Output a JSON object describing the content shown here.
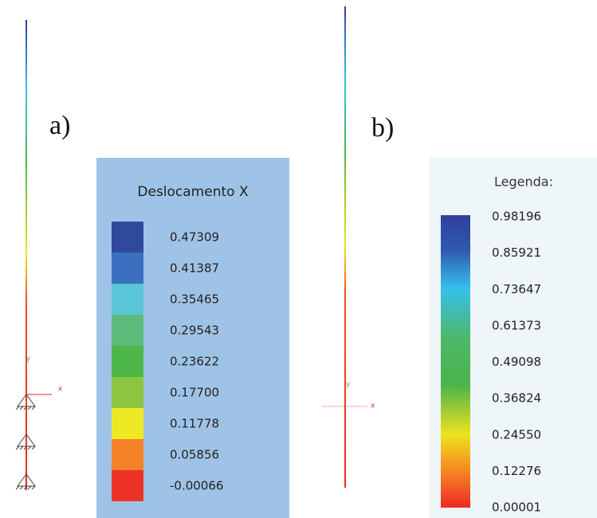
{
  "panel_a": {
    "label": "a)",
    "axis_x": "x",
    "axis_y": "y",
    "legend": {
      "title": "Deslocamento X",
      "values": [
        "0.47309",
        "0.41387",
        "0.35465",
        "0.29543",
        "0.23622",
        "0.17700",
        "0.11778",
        "0.05856",
        "-0.00066"
      ],
      "colors": [
        "#2f4a9c",
        "#3b70c0",
        "#5ac6d8",
        "#5cbb7a",
        "#4db649",
        "#8cc640",
        "#eee925",
        "#f38228",
        "#ec3325"
      ]
    }
  },
  "panel_b": {
    "label": "b)",
    "axis_x": "x",
    "axis_y": "y",
    "legend": {
      "title": "Legenda:",
      "values": [
        "0.98196",
        "0.85921",
        "0.73647",
        "0.61373",
        "0.49098",
        "0.36824",
        "0.24550",
        "0.12276",
        "0.00001"
      ]
    }
  }
}
